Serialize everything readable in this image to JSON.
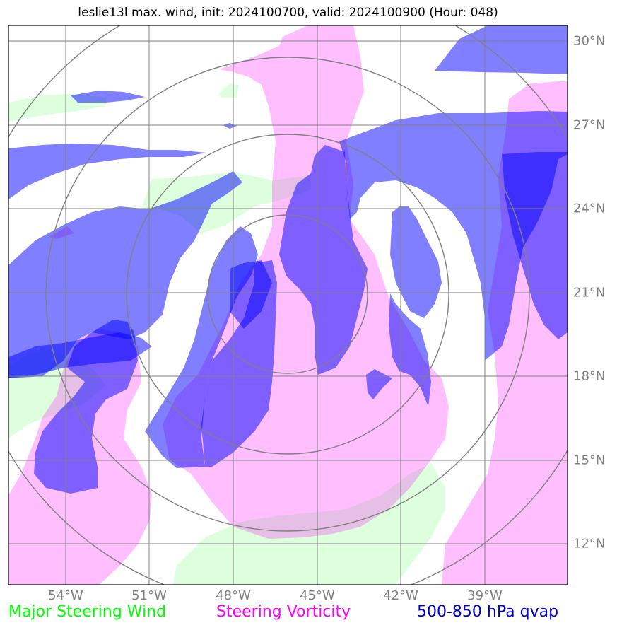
{
  "title": "leslie13l max. wind, init: 2024100700, valid: 2024100900 (Hour: 048)",
  "colors": {
    "steering_wind": "#00ff00",
    "steering_vorticity": "#ff00ff",
    "qvap": "#0000cc",
    "grid": "#808080",
    "range_rings": "#808080"
  },
  "latitude_labels": [
    "30°N",
    "27°N",
    "24°N",
    "21°N",
    "18°N",
    "15°N",
    "12°N"
  ],
  "longitude_labels": [
    "54°W",
    "51°W",
    "48°W",
    "45°W",
    "42°W",
    "39°W"
  ],
  "legend": {
    "steering_wind": "Major Steering Wind",
    "steering_vorticity": "Steering Vorticity",
    "qvap": "500-850 hPa qvap"
  }
}
